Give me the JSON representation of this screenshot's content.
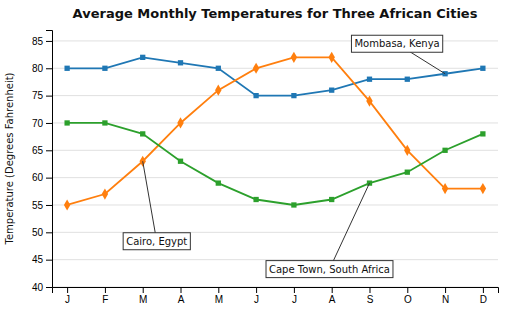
{
  "chart_data": {
    "type": "line",
    "title": "Average Monthly Temperatures for Three African Cities",
    "y_label": "Temperature (Degrees Fahrenheit)",
    "categories": [
      "J",
      "F",
      "M",
      "A",
      "M",
      "J",
      "J",
      "A",
      "S",
      "O",
      "N",
      "D"
    ],
    "series": [
      {
        "name": "Mombasa, Kenya",
        "marker": "square",
        "values": [
          80,
          80,
          82,
          81,
          80,
          75,
          75,
          76,
          78,
          78,
          79,
          80
        ]
      },
      {
        "name": "Cairo, Egypt",
        "marker": "diamond",
        "values": [
          55,
          57,
          63,
          70,
          76,
          80,
          82,
          82,
          74,
          65,
          58,
          58
        ]
      },
      {
        "name": "Cape Town, South Africa",
        "marker": "square",
        "values": [
          70,
          70,
          68,
          63,
          59,
          56,
          55,
          56,
          59,
          61,
          65,
          68
        ]
      }
    ],
    "ylim": [
      40,
      87
    ],
    "yticks": [
      40,
      45,
      50,
      55,
      60,
      65,
      70,
      75,
      80,
      85
    ],
    "grid": true
  }
}
